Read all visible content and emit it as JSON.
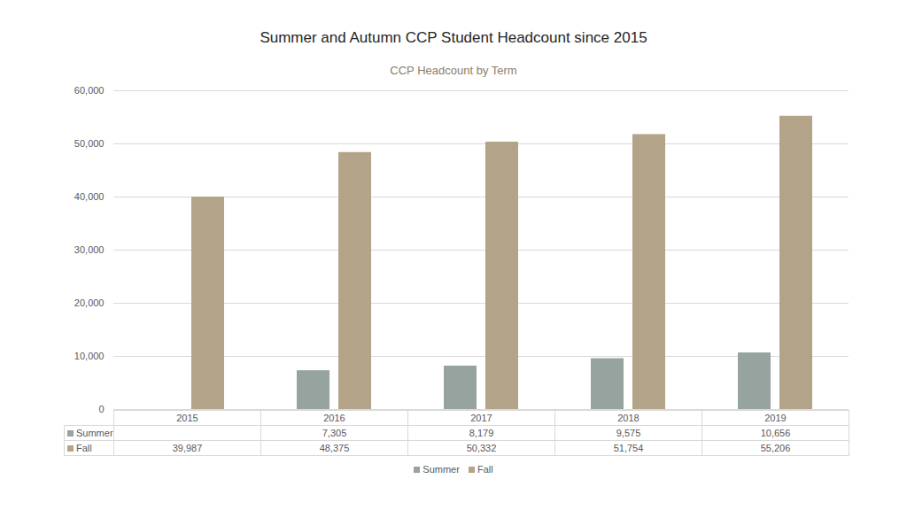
{
  "chart_data": {
    "type": "bar",
    "title": "Summer and Autumn CCP Student Headcount since 2015",
    "subtitle": "CCP Headcount by Term",
    "categories": [
      "2015",
      "2016",
      "2017",
      "2018",
      "2019"
    ],
    "series": [
      {
        "name": "Summer",
        "color": "#97a39e",
        "values": [
          null,
          7305,
          8179,
          9575,
          10656
        ],
        "value_labels": [
          null,
          "7,305",
          "8,179",
          "9,575",
          "10,656"
        ]
      },
      {
        "name": "Fall",
        "color": "#b2a389",
        "values": [
          39987,
          48375,
          50332,
          51754,
          55206
        ],
        "value_labels": [
          "39,987",
          "48,375",
          "50,332",
          "51,754",
          "55,206"
        ]
      }
    ],
    "ylim": [
      0,
      60000
    ],
    "yticks": [
      0,
      {
        "value": 10000,
        "label": "10,000"
      },
      {
        "value": 20000,
        "label": "20,000"
      },
      {
        "value": 30000,
        "label": "30,000"
      },
      {
        "value": 40000,
        "label": "40,000"
      },
      {
        "value": 50000,
        "label": "50,000"
      },
      {
        "value": 60000,
        "label": "60,000"
      }
    ],
    "grid": true,
    "legend": "bottom"
  }
}
